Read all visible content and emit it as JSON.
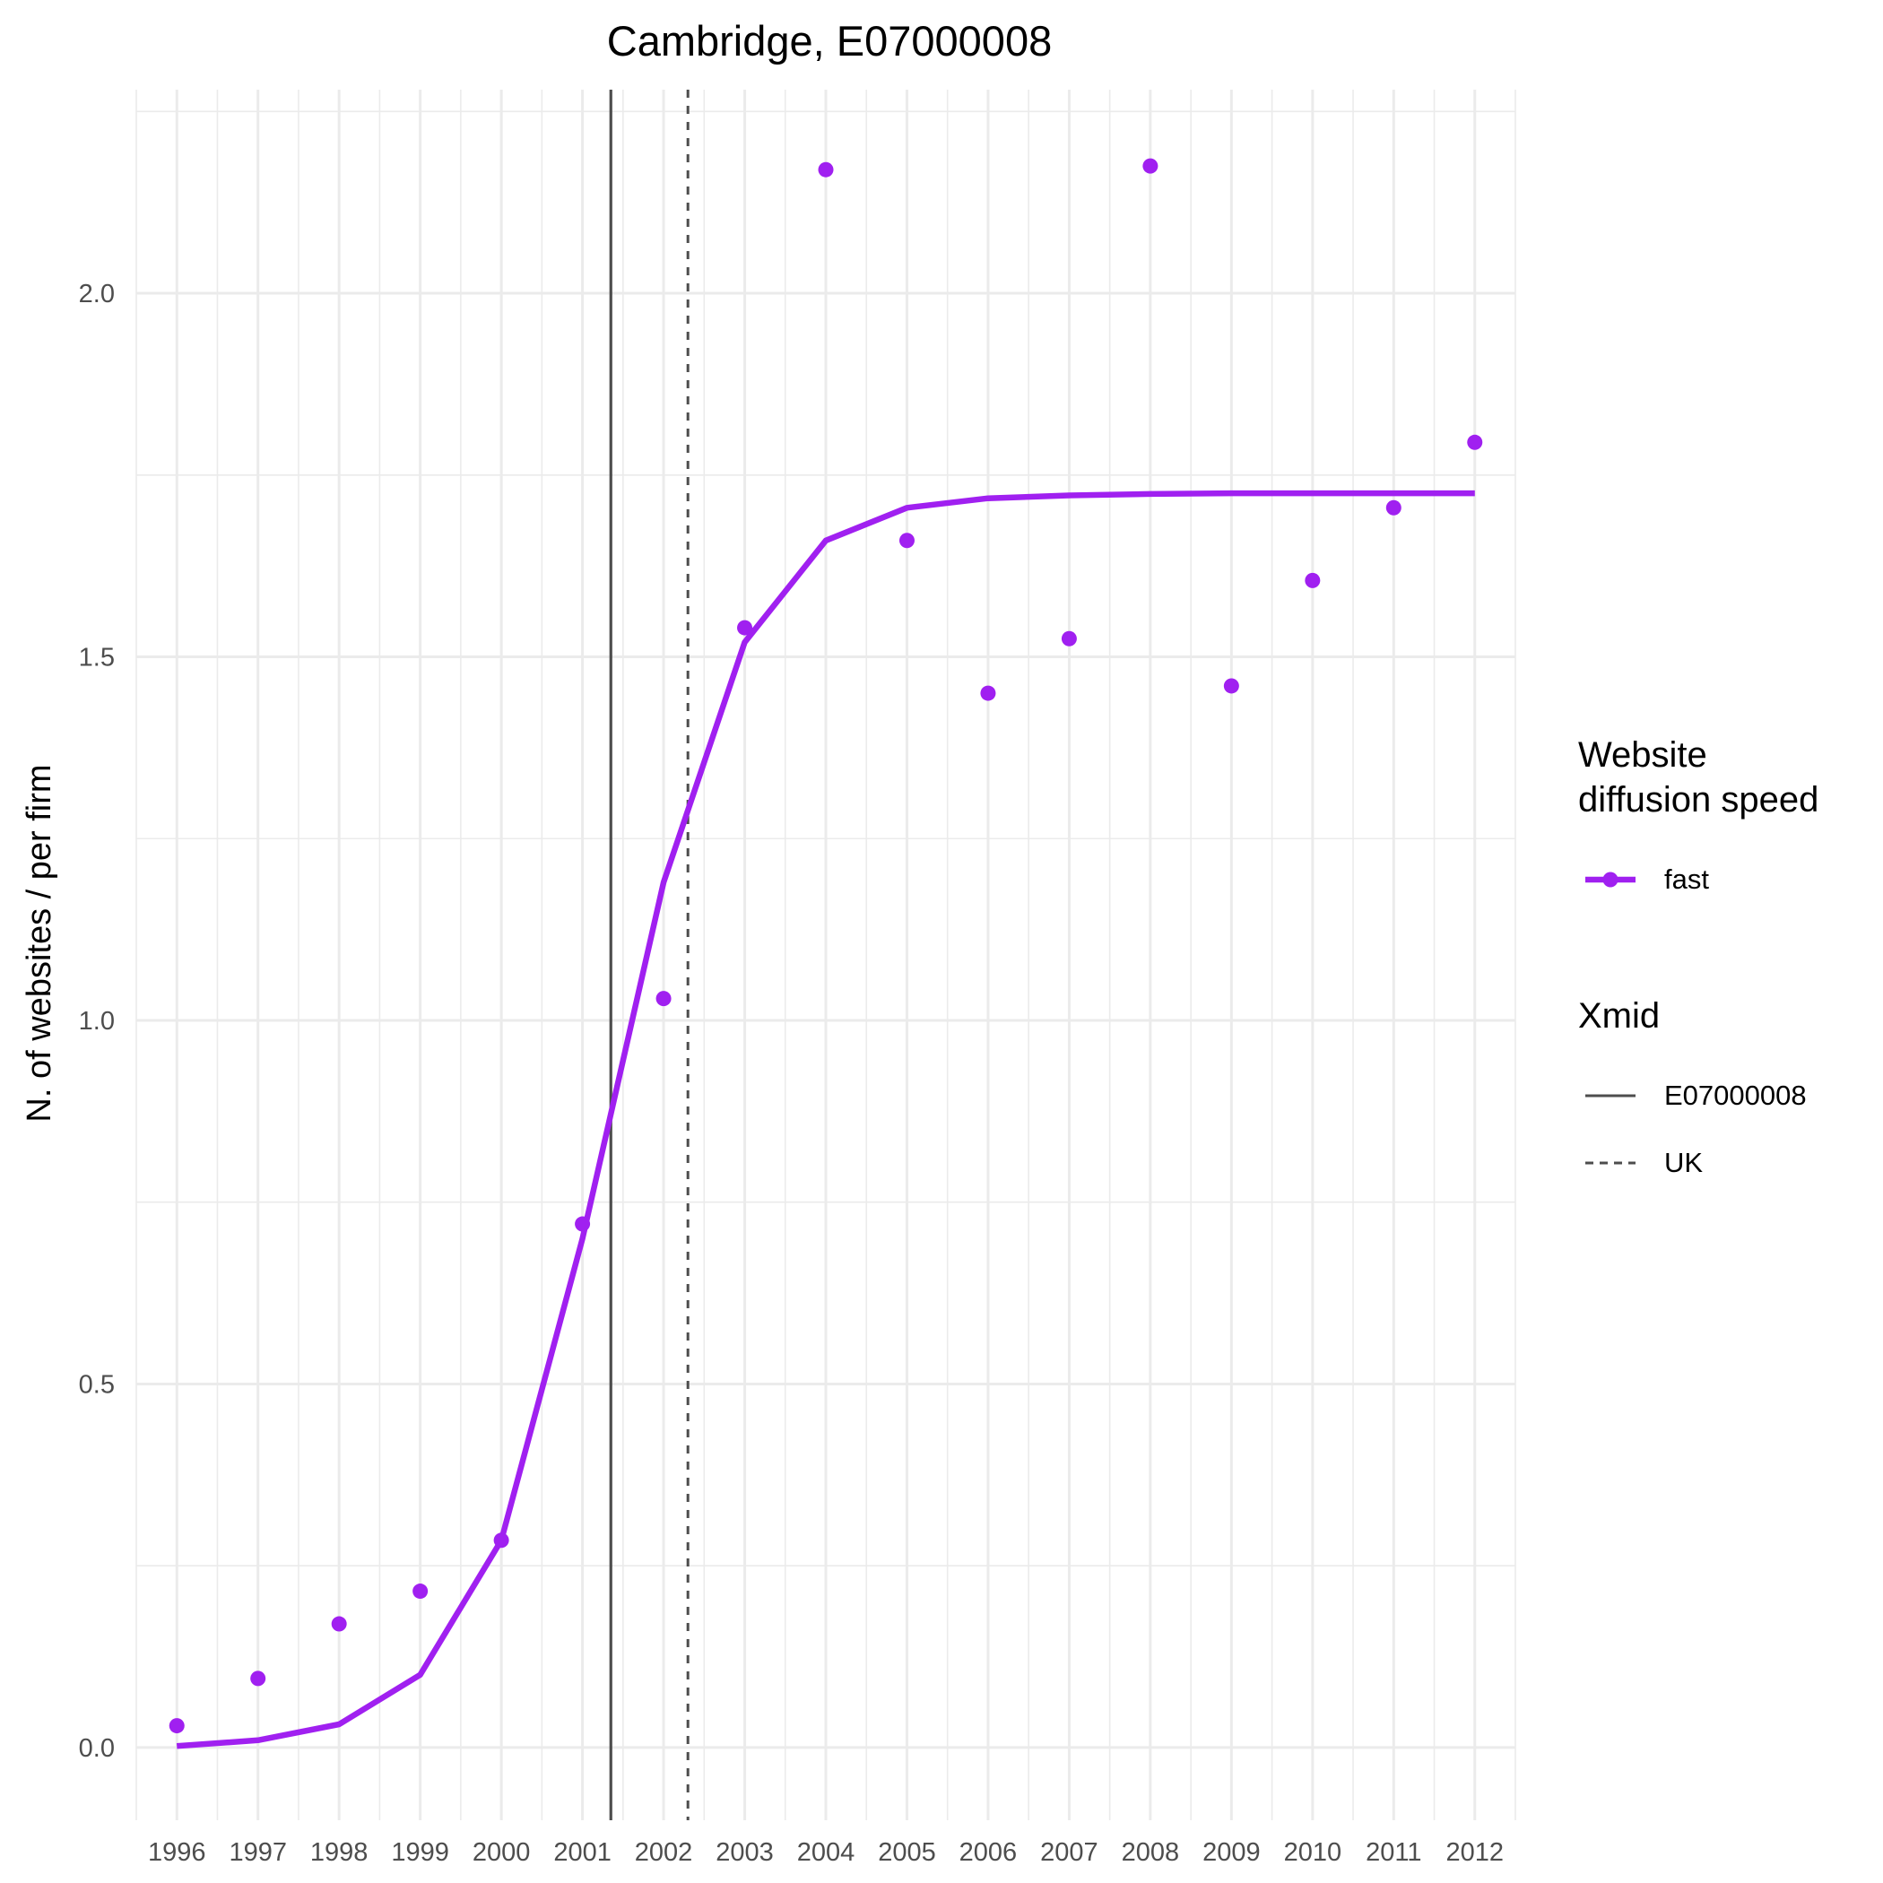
{
  "chart_data": {
    "type": "line",
    "title": "Cambridge, E07000008",
    "xlabel": "",
    "ylabel": "N. of websites / per firm",
    "x": [
      1996,
      1997,
      1998,
      1999,
      2000,
      2001,
      2002,
      2003,
      2004,
      2005,
      2006,
      2007,
      2008,
      2009,
      2010,
      2011,
      2012
    ],
    "xticks": [
      "1996",
      "1997",
      "1998",
      "1999",
      "2000",
      "2001",
      "2002",
      "2003",
      "2004",
      "2005",
      "2006",
      "2007",
      "2008",
      "2009",
      "2010",
      "2011",
      "2012"
    ],
    "yticks": [
      0.0,
      0.5,
      1.0,
      1.5,
      2.0
    ],
    "ytick_labels": [
      "0.0",
      "0.5",
      "1.0",
      "1.5",
      "2.0"
    ],
    "xlim": [
      1995.5,
      2012.5
    ],
    "ylim": [
      -0.1,
      2.28
    ],
    "grid": true,
    "series": [
      {
        "name": "fast",
        "color": "#a020f0",
        "points": [
          0.03,
          0.095,
          0.17,
          0.215,
          0.285,
          0.72,
          1.03,
          1.54,
          2.17,
          1.66,
          1.45,
          1.525,
          2.175,
          1.46,
          1.605,
          1.705,
          1.795
        ],
        "fitted": [
          0.002,
          0.01,
          0.032,
          0.1,
          0.285,
          0.7,
          1.19,
          1.52,
          1.66,
          1.705,
          1.718,
          1.722,
          1.724,
          1.725,
          1.725,
          1.725,
          1.725
        ]
      }
    ],
    "vlines": [
      {
        "name": "E07000008",
        "x": 2001.35,
        "linetype": "solid",
        "color": "#4d4d4d"
      },
      {
        "name": "UK",
        "x": 2002.3,
        "linetype": "dashed",
        "color": "#4d4d4d"
      }
    ],
    "legend": {
      "position": "right",
      "groups": [
        {
          "title": "Website\ndiffusion speed",
          "entries": [
            {
              "label": "fast",
              "kind": "line-point",
              "color": "#a020f0"
            }
          ]
        },
        {
          "title": "Xmid",
          "entries": [
            {
              "label": "E07000008",
              "kind": "solid",
              "color": "#4d4d4d"
            },
            {
              "label": "UK",
              "kind": "dashed",
              "color": "#4d4d4d"
            }
          ]
        }
      ]
    }
  }
}
